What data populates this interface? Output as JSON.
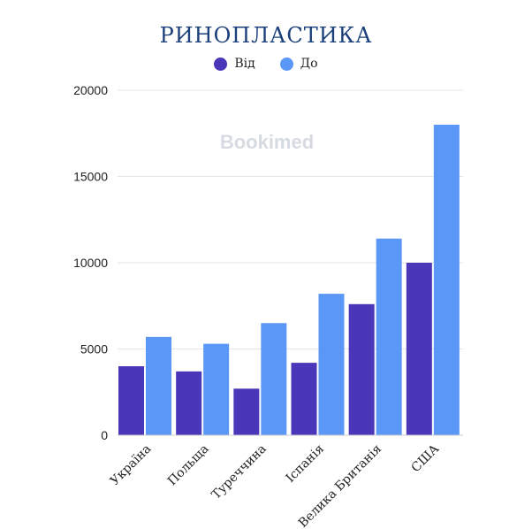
{
  "watermark": "Bookimed",
  "colors": {
    "vid": "#4a36b8",
    "do": "#5b97f6",
    "grid": "#e6e6e6",
    "title": "#1b3f7a"
  },
  "chart_data": {
    "type": "bar",
    "title": "РИНОПЛАСТИКА",
    "categories": [
      "Україна",
      "Польща",
      "Туреччина",
      "Іспанія",
      "Велика Британія",
      "США"
    ],
    "series": [
      {
        "name": "Від",
        "values": [
          4000,
          3700,
          2700,
          4200,
          7600,
          10000
        ]
      },
      {
        "name": "До",
        "values": [
          5700,
          5300,
          6500,
          8200,
          11400,
          18000
        ]
      }
    ],
    "yticks": [
      0,
      5000,
      10000,
      15000,
      20000
    ],
    "ylim": [
      0,
      20000
    ],
    "grid": true,
    "legend": "top"
  }
}
